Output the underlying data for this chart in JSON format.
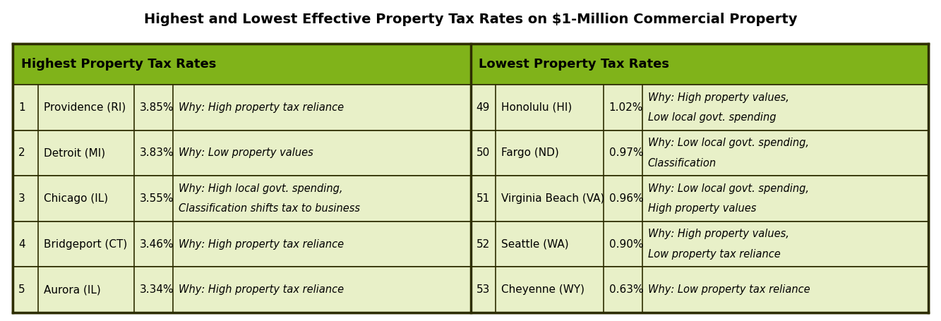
{
  "title": "Highest and Lowest Effective Property Tax Rates on $1-Million Commercial Property",
  "header_bg": "#80b31a",
  "header_text_color": "#000000",
  "row_bg_light": "#e8f0c8",
  "border_color": "#2d2d00",
  "highest_header": "Highest Property Tax Rates",
  "lowest_header": "Lowest Property Tax Rates",
  "highest_rows": [
    {
      "rank": "1",
      "city": "Providence (RI)",
      "rate": "3.85%",
      "why": "Why: High property tax reliance",
      "two_line": false
    },
    {
      "rank": "2",
      "city": "Detroit (MI)",
      "rate": "3.83%",
      "why": "Why: Low property values",
      "two_line": false
    },
    {
      "rank": "3",
      "city": "Chicago (IL)",
      "rate": "3.55%",
      "why1": "Why: High local govt. spending,",
      "why2": "Classification shifts tax to business",
      "two_line": true
    },
    {
      "rank": "4",
      "city": "Bridgeport (CT)",
      "rate": "3.46%",
      "why": "Why: High property tax reliance",
      "two_line": false
    },
    {
      "rank": "5",
      "city": "Aurora (IL)",
      "rate": "3.34%",
      "why": "Why: High property tax reliance",
      "two_line": false
    }
  ],
  "lowest_rows": [
    {
      "rank": "49",
      "city": "Honolulu (HI)",
      "rate": "1.02%",
      "why1": "Why: High property values,",
      "why2": "Low local govt. spending",
      "two_line": true
    },
    {
      "rank": "50",
      "city": "Fargo (ND)",
      "rate": "0.97%",
      "why1": "Why: Low local govt. spending,",
      "why2": "Classification",
      "two_line": true
    },
    {
      "rank": "51",
      "city": "Virginia Beach (VA)",
      "rate": "0.96%",
      "why1": "Why: Low local govt. spending,",
      "why2": "High property values",
      "two_line": true
    },
    {
      "rank": "52",
      "city": "Seattle (WA)",
      "rate": "0.90%",
      "why1": "Why: High property values,",
      "why2": "Low property tax reliance",
      "two_line": true
    },
    {
      "rank": "53",
      "city": "Cheyenne (WY)",
      "rate": "0.63%",
      "why": "Why: Low property tax reliance",
      "two_line": false
    }
  ],
  "fig_width": 13.33,
  "fig_height": 4.55,
  "dpi": 100
}
